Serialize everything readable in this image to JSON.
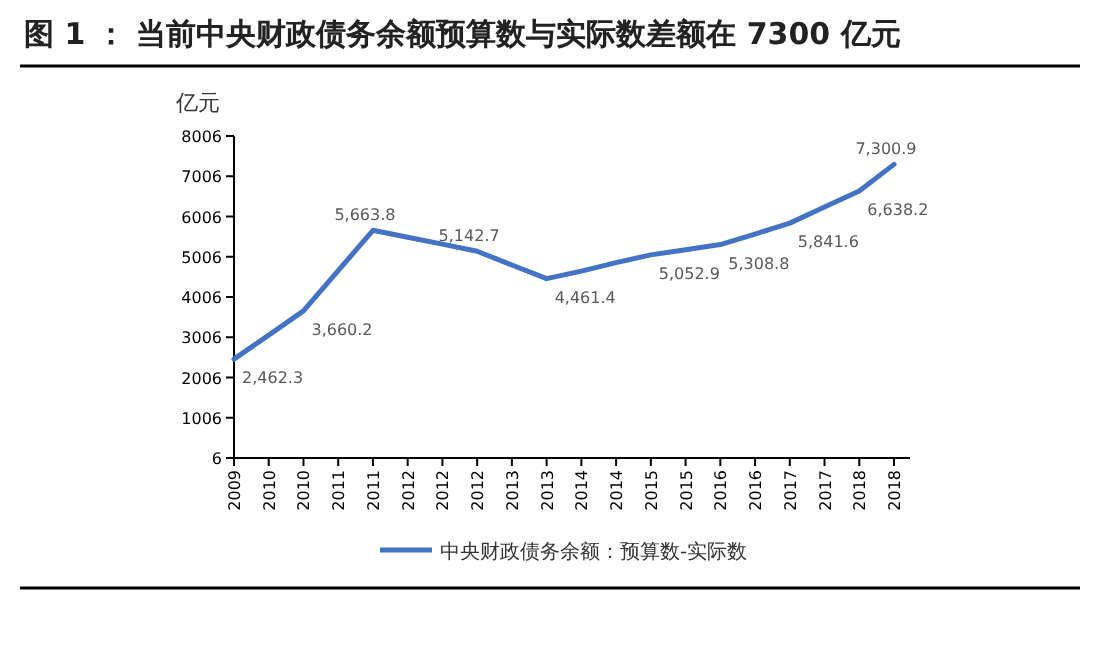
{
  "chart_data": {
    "type": "line",
    "title": "图 1 ： 当前中央财政债务余额预算数与实际数差额在 7300 亿元",
    "ylabel": "亿元",
    "categories": [
      "2009",
      "2010",
      "2010",
      "2011",
      "2011",
      "2012",
      "2012",
      "2012",
      "2013",
      "2013",
      "2014",
      "2014",
      "2015",
      "2015",
      "2016",
      "2016",
      "2017",
      "2017",
      "2018",
      "2018"
    ],
    "series": [
      {
        "name": "中央财政债务余额：预算数-实际数",
        "color": "#4472c4",
        "values": [
          2462.3,
          3060,
          3660.2,
          4660,
          5663.8,
          5490,
          5320,
          5142.7,
          4800,
          4461.4,
          4650,
          4860,
          5052.9,
          5180,
          5308.8,
          5570,
          5841.6,
          6240,
          6638.2,
          7300.9
        ],
        "value_labels": [
          "2,462.3",
          null,
          "3,660.2",
          null,
          "5,663.8",
          null,
          null,
          "5,142.7",
          null,
          "4,461.4",
          null,
          null,
          "5,052.9",
          null,
          "5,308.8",
          null,
          "5,841.6",
          null,
          "6,638.2",
          "7,300.9"
        ]
      }
    ],
    "ylim": [
      6,
      8006
    ],
    "yticks": [
      6,
      1006,
      2006,
      3006,
      4006,
      5006,
      6006,
      7006,
      8006
    ],
    "grid": false,
    "legend": "bottom",
    "marker": "none",
    "line_style": "solid"
  }
}
